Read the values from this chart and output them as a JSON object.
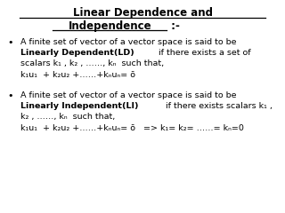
{
  "title_line1": "Linear Dependence and",
  "title_line2": "Independence",
  "title_suffix": " :-",
  "bg_color": "#ffffff",
  "text_color": "#000000",
  "bullet1_line1": "A finite set of vector of a vector space is said to be",
  "bullet1_bold": "Linearly Dependent(LD)",
  "bullet1_line2": " if there exists a set of",
  "bullet1_line3": "scalars k₁ , k₂ , ……, kₙ  such that,",
  "bullet1_eq": "k₁u₁  + k₂u₂ +……+kₙuₙ= ō",
  "bullet2_line1": "A finite set of vector of a vector space is said to be",
  "bullet2_bold": "Linearly Independent(LI)",
  "bullet2_line2": " if there exists scalars k₁ ,",
  "bullet2_line3": "k₂ , ……, kₙ  such that,",
  "bullet2_eq": "k₁u₁  + k₂u₂ +……+kₙuₙ= ō   => k₁= k₂= ……= kₙ=0",
  "title_fs": 8.5,
  "body_fs": 6.8,
  "bullet_fs": 8.0
}
